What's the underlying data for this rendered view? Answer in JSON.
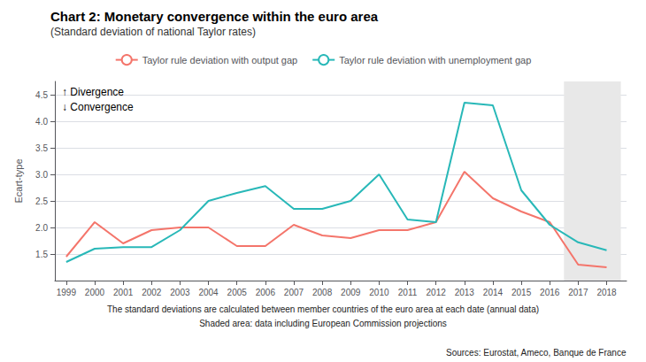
{
  "chart_data": {
    "type": "line",
    "title": "Chart 2: Monetary convergence within the euro area",
    "subtitle": "(Standard deviation of national Taylor rates)",
    "ylabel": "Ecart-type",
    "x": [
      1999,
      2000,
      2001,
      2002,
      2003,
      2004,
      2005,
      2006,
      2007,
      2008,
      2009,
      2010,
      2011,
      2012,
      2013,
      2014,
      2015,
      2016,
      2017,
      2018
    ],
    "series": [
      {
        "name": "Taylor rule deviation with output gap",
        "color": "#f4756b",
        "values": [
          1.45,
          2.1,
          1.7,
          1.95,
          2.0,
          2.0,
          1.65,
          1.65,
          2.05,
          1.85,
          1.8,
          1.95,
          1.95,
          2.1,
          3.05,
          2.55,
          2.3,
          2.1,
          1.3,
          1.25
        ]
      },
      {
        "name": "Taylor rule deviation with unemployment gap",
        "color": "#28b8b8",
        "values": [
          1.35,
          1.6,
          1.63,
          1.63,
          1.95,
          2.5,
          2.65,
          2.78,
          2.35,
          2.35,
          2.5,
          3.0,
          2.15,
          2.1,
          4.35,
          4.3,
          2.7,
          2.05,
          1.72,
          1.57
        ]
      }
    ],
    "xlim": [
      1998.6,
      2018.7
    ],
    "xticks": [
      1999,
      2000,
      2001,
      2002,
      2003,
      2004,
      2005,
      2006,
      2007,
      2008,
      2009,
      2010,
      2011,
      2012,
      2013,
      2014,
      2015,
      2016,
      2017,
      2018
    ],
    "ylim": [
      1.0,
      4.75
    ],
    "yticks": [
      1.5,
      {
        "value": 2.0,
        "label": "2.0"
      },
      2.5,
      {
        "value": 3.0,
        "label": "3.0"
      },
      3.5,
      {
        "value": 4.0,
        "label": "4.0"
      },
      4.5
    ],
    "grid": true,
    "legend": "top",
    "annotations": [
      "↑ Divergence",
      "↓ Convergence"
    ],
    "shaded_span": [
      2016.5,
      2018.5
    ],
    "shaded_color": "#e8e8e8",
    "footnotes": [
      "The standard deviations are calculated between member countries of the euro area at each date (annual data)",
      "Shaded area: data including European Commission projections"
    ],
    "source": "Sources: Eurostat, Ameco, Banque de France"
  }
}
